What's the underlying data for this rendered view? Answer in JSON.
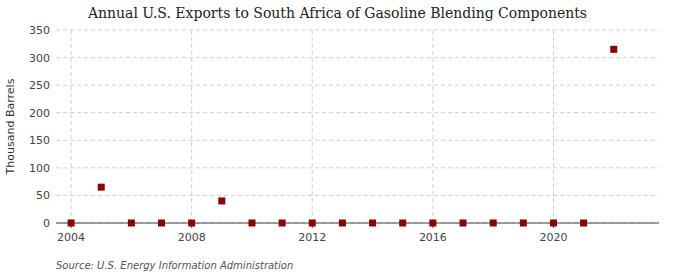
{
  "chart_data": {
    "type": "scatter",
    "title": "Annual U.S. Exports to South Africa of Gasoline Blending Components",
    "ylabel": "Thousand Barrels",
    "annotations": [
      "Source: U.S. Energy Information Administration"
    ],
    "x": [
      2004,
      2005,
      2006,
      2007,
      2008,
      2009,
      2010,
      2011,
      2012,
      2013,
      2014,
      2015,
      2016,
      2017,
      2018,
      2019,
      2020,
      2021,
      2022
    ],
    "values": [
      0,
      65,
      0,
      0,
      0,
      40,
      0,
      0,
      0,
      0,
      0,
      0,
      0,
      0,
      0,
      0,
      0,
      0,
      315
    ],
    "color": "#8B0000",
    "marker": "square",
    "xlim": [
      2003.5,
      2023.5
    ],
    "ylim": [
      0,
      350
    ],
    "xticks": [
      2004,
      2008,
      2012,
      2016,
      2020
    ],
    "yticks": [
      0,
      50,
      100,
      150,
      200,
      250,
      300,
      350
    ],
    "grid": true
  }
}
